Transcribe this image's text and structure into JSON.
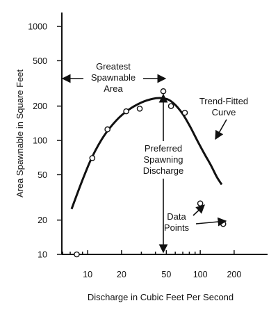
{
  "chart_data": {
    "type": "scatter",
    "x_scale": "log",
    "y_scale": "log",
    "xlabel": "Discharge in Cubic Feet Per Second",
    "ylabel": "Area Spawnable in Square Feet",
    "xlim": [
      5,
      250
    ],
    "ylim": [
      10,
      1200
    ],
    "x_ticks": [
      10,
      20,
      50,
      100,
      200
    ],
    "x_tick_labels": [
      "10",
      "20",
      "50",
      "100",
      "200"
    ],
    "y_ticks": [
      10,
      20,
      50,
      100,
      200,
      500,
      1000
    ],
    "y_tick_labels": [
      "10",
      "20",
      "50",
      "100",
      "200",
      "500",
      "1000"
    ],
    "grid": false,
    "points": [
      {
        "x": 8,
        "y": 10
      },
      {
        "x": 11,
        "y": 70
      },
      {
        "x": 15,
        "y": 125
      },
      {
        "x": 22,
        "y": 180
      },
      {
        "x": 29,
        "y": 190
      },
      {
        "x": 47,
        "y": 270
      },
      {
        "x": 55,
        "y": 200
      },
      {
        "x": 73,
        "y": 175
      },
      {
        "x": 100,
        "y": 28
      },
      {
        "x": 160,
        "y": 18.5
      }
    ],
    "curve": {
      "x": [
        7.2,
        9,
        11,
        14,
        18,
        23,
        30,
        38,
        45,
        52,
        60,
        70,
        82,
        95,
        110,
        125,
        140,
        155
      ],
      "y": [
        25,
        45,
        72,
        110,
        150,
        185,
        215,
        232,
        235,
        228,
        205,
        170,
        130,
        98,
        75,
        60,
        48,
        41
      ]
    },
    "annotations": {
      "greatest_line1": "Greatest",
      "greatest_line2": "Spawnable",
      "greatest_line3": "Area",
      "preferred_line1": "Preferred",
      "preferred_line2": "Spawning",
      "preferred_line3": "Discharge",
      "trend_line1": "Trend-Fitted",
      "trend_line2": "Curve",
      "datapoints_line1": "Data",
      "datapoints_line2": "Points"
    }
  }
}
